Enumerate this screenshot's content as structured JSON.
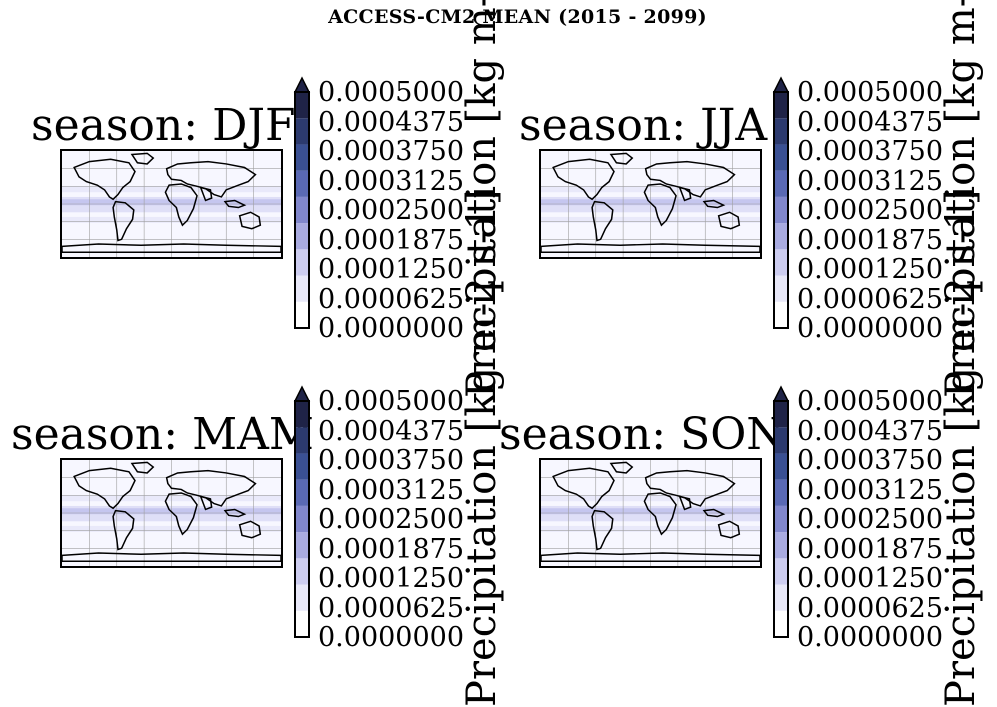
{
  "figure": {
    "title": "ACCESS-CM2 MEAN (2015 - 2099)"
  },
  "colorbar": {
    "label": "Precipitation [kg m-2 s-1]",
    "ticks": [
      "0.0000000",
      "0.0000625",
      "0.0001250",
      "0.0001875",
      "0.0002500",
      "0.0003125",
      "0.0003750",
      "0.0004375",
      "0.0005000"
    ],
    "colors": [
      "#ffffff",
      "#e8e8f8",
      "#cdcdf0",
      "#a9abe0",
      "#8187cc",
      "#5a69b4",
      "#3a5093",
      "#2c3a6e",
      "#1f2347"
    ]
  },
  "panels": [
    {
      "season": "season: DJF"
    },
    {
      "season": "season: JJA"
    },
    {
      "season": "season: MAM"
    },
    {
      "season": "season: SON"
    }
  ],
  "map_colors": {
    "background": "#f7f7ff",
    "field": "#dcdcf6",
    "strong": "#b9bbeb",
    "coast": "#000000",
    "grid": "#a0a0a0"
  }
}
